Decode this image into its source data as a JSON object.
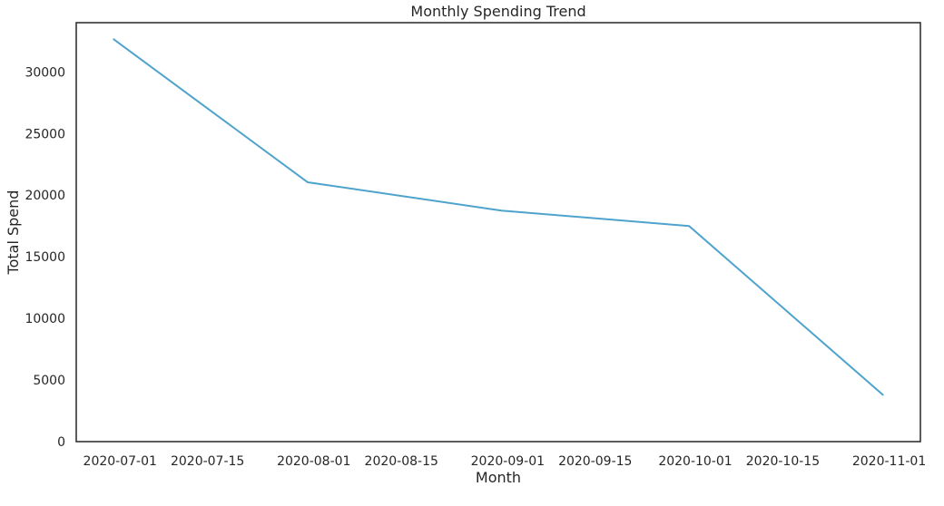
{
  "chart_data": {
    "type": "line",
    "title": "Monthly Spending Trend",
    "xlabel": "Month",
    "ylabel": "Total Spend",
    "x": [
      "2020-06-30",
      "2020-07-31",
      "2020-08-31",
      "2020-09-30",
      "2020-10-31"
    ],
    "series": [
      {
        "values": [
          32650,
          21050,
          18750,
          17500,
          3800
        ]
      }
    ],
    "x_ticks": [
      "2020-07-01",
      "2020-07-15",
      "2020-08-01",
      "2020-08-15",
      "2020-09-01",
      "2020-09-15",
      "2020-10-01",
      "2020-10-15",
      "2020-11-01"
    ],
    "y_ticks": [
      0,
      5000,
      10000,
      15000,
      20000,
      25000,
      30000
    ],
    "xlim": [
      "2020-06-24",
      "2020-11-06"
    ],
    "ylim": [
      0,
      34000
    ],
    "grid": false,
    "legend": "none",
    "colors": {
      "line": "#4ea3cd",
      "axes": "#262626"
    }
  }
}
